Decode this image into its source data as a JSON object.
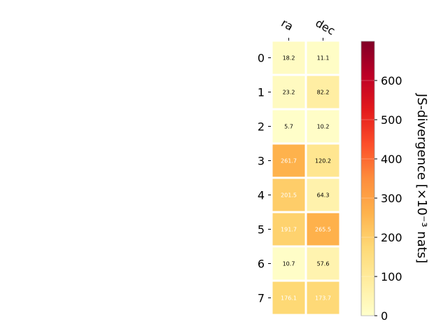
{
  "chart_data": {
    "type": "heatmap",
    "x_categories": [
      "ra",
      "dec"
    ],
    "y_categories": [
      "0",
      "1",
      "2",
      "3",
      "4",
      "5",
      "6",
      "7"
    ],
    "values": [
      [
        18.2,
        11.1
      ],
      [
        23.2,
        82.2
      ],
      [
        5.7,
        10.2
      ],
      [
        261.7,
        120.2
      ],
      [
        201.5,
        64.3
      ],
      [
        191.7,
        265.5
      ],
      [
        10.7,
        57.6
      ],
      [
        176.1,
        173.7
      ]
    ],
    "labels": [
      [
        "18.2",
        "11.1"
      ],
      [
        "23.2",
        "82.2"
      ],
      [
        "5.7",
        "10.2"
      ],
      [
        "261.7",
        "120.2"
      ],
      [
        "201.5",
        "64.3"
      ],
      [
        "191.7",
        "265.5"
      ],
      [
        "10.7",
        "57.6"
      ],
      [
        "176.1",
        "173.7"
      ]
    ],
    "colorbar": {
      "label": "JS-divergence [×10⁻³ nats]",
      "range": [
        0,
        700
      ],
      "ticks": [
        0,
        100,
        200,
        300,
        400,
        500,
        600
      ],
      "tick_labels": [
        "0",
        "100",
        "200",
        "300",
        "400",
        "500",
        "600"
      ],
      "colormap": "YlOrRd"
    },
    "label_colors": {
      "light_cell": "#000000",
      "dark_cell": "#ffffff"
    },
    "grid_line_color": "#ffffff"
  }
}
